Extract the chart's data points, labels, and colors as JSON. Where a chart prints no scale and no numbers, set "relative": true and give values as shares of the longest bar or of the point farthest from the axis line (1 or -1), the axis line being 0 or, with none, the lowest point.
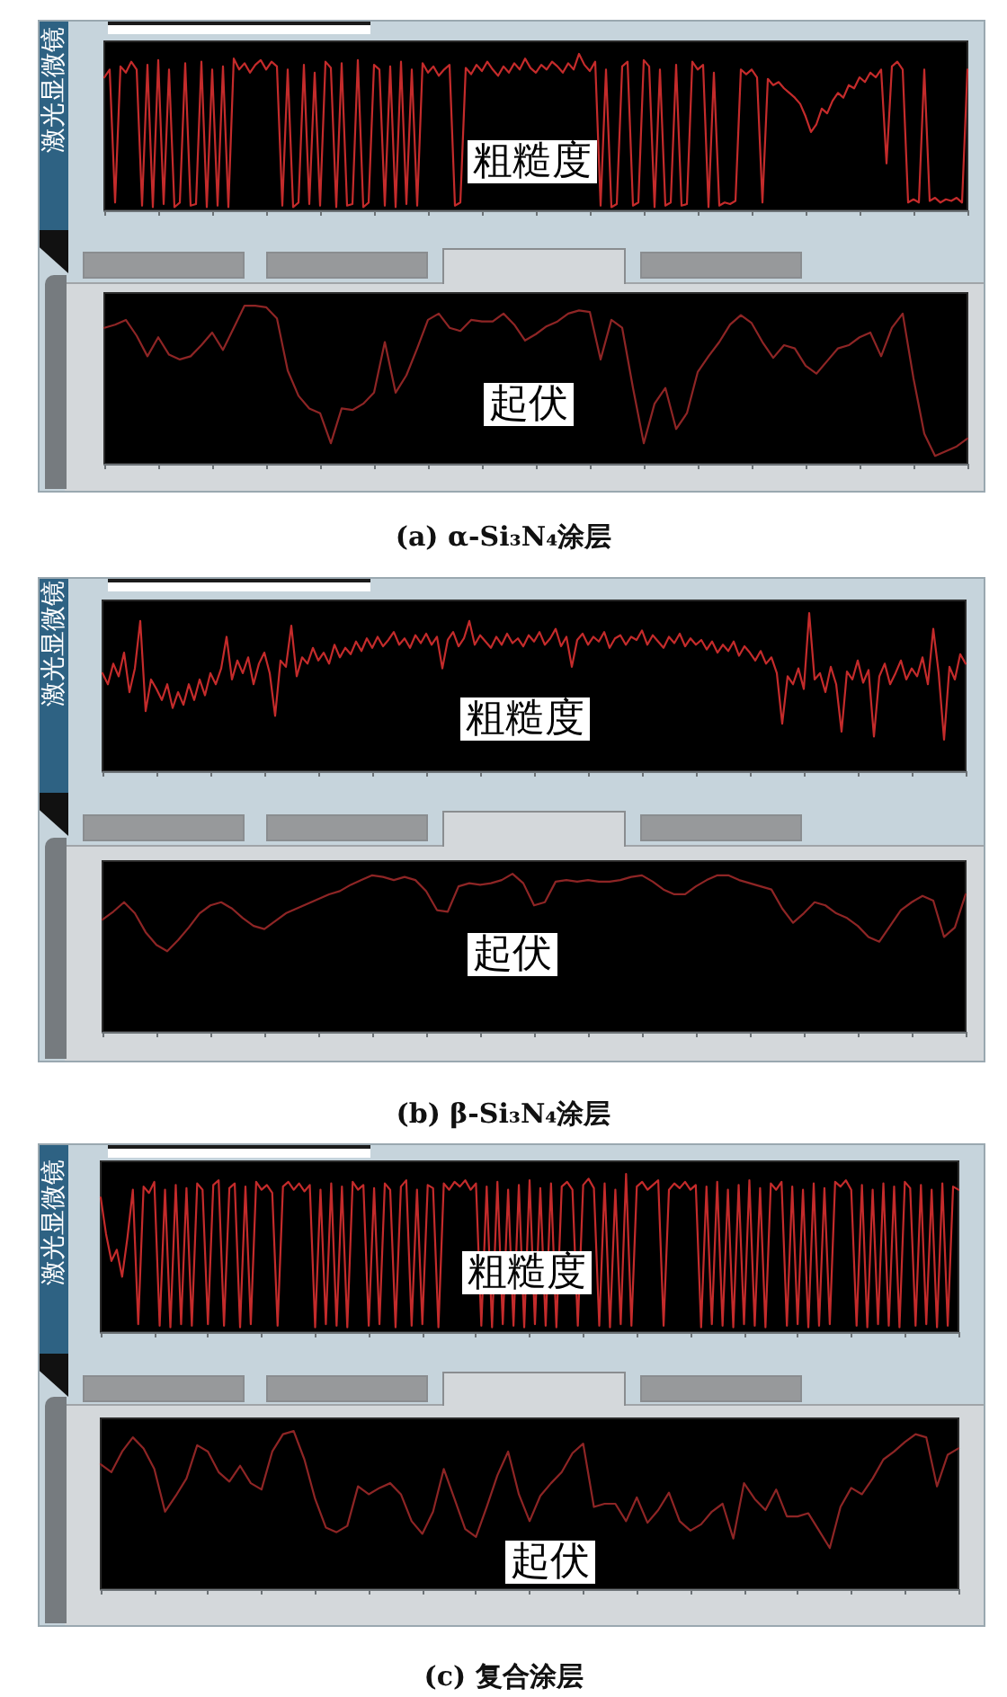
{
  "chart_data": [
    {
      "type": "line",
      "ylabel": "激光显微镜",
      "annotations": [
        "粗糙度"
      ],
      "relative": true,
      "categories": [
        null,
        null,
        null,
        null,
        null,
        null,
        null,
        null,
        null,
        null,
        null,
        null,
        null,
        null,
        null,
        null,
        null,
        null,
        null,
        null,
        null,
        null,
        null,
        null,
        null,
        null,
        null,
        null,
        null,
        null,
        null,
        null,
        null,
        null,
        null,
        null,
        null,
        null,
        null,
        null,
        null,
        null,
        null,
        null,
        null,
        null,
        null,
        null,
        null,
        null,
        null,
        null,
        null,
        null,
        null,
        null,
        null,
        null,
        null,
        null,
        null,
        null,
        null,
        null,
        null,
        null,
        null,
        null,
        null,
        null,
        null,
        null,
        null,
        null,
        null,
        null,
        null,
        null,
        null,
        null,
        null,
        null,
        null,
        null,
        null,
        null,
        null,
        null,
        null,
        null,
        null,
        null,
        null,
        null,
        null,
        null,
        null,
        null,
        null,
        null,
        null,
        null,
        null,
        null,
        null,
        null,
        null,
        null,
        null,
        null,
        null,
        null,
        null,
        null,
        null,
        null,
        null,
        null,
        null,
        null,
        null,
        null,
        null,
        null,
        null,
        null,
        null,
        null,
        null,
        null,
        null,
        null,
        null,
        null,
        null,
        null,
        null,
        null,
        null,
        null,
        null,
        null,
        null,
        null,
        null,
        null,
        null,
        null,
        null,
        null,
        null,
        null,
        null,
        null,
        null,
        null,
        null,
        null,
        null,
        null,
        null
      ],
      "series": [
        {
          "color": "#c42b2b",
          "values": [
            0.85,
            0.9,
            0.05,
            0.92,
            0.88,
            0.95,
            0.9,
            0.03,
            0.93,
            0.02,
            0.96,
            0.04,
            0.9,
            0.02,
            0.05,
            0.94,
            0.03,
            0.04,
            0.95,
            0.02,
            0.9,
            0.03,
            0.92,
            0.02,
            0.97,
            0.9,
            0.94,
            0.88,
            0.93,
            0.96,
            0.9,
            0.95,
            0.92,
            0.03,
            0.9,
            0.02,
            0.05,
            0.93,
            0.04,
            0.88,
            0.03,
            0.95,
            0.91,
            0.02,
            0.94,
            0.03,
            0.04,
            0.96,
            0.02,
            0.05,
            0.93,
            0.9,
            0.03,
            0.92,
            0.02,
            0.95,
            0.04,
            0.9,
            0.03,
            0.94,
            0.88,
            0.92,
            0.86,
            0.9,
            0.93,
            0.03,
            0.05,
            0.91,
            0.87,
            0.93,
            0.89,
            0.95,
            0.9,
            0.86,
            0.92,
            0.88,
            0.94,
            0.9,
            0.97,
            0.91,
            0.88,
            0.93,
            0.9,
            0.95,
            0.92,
            0.88,
            0.94,
            0.9,
            1,
            0.93,
            0.89,
            0.95,
            0.03,
            0.9,
            0.02,
            0.04,
            0.92,
            0.95,
            0.03,
            0.05,
            0.96,
            0.92,
            0.02,
            0.9,
            0.03,
            0.05,
            0.93,
            0.03,
            0.04,
            0.95,
            0.9,
            0.93,
            0.02,
            0.88,
            0.03,
            0.05,
            0.04,
            0.06,
            0.9,
            0.87,
            0.9,
            0.85,
            0.05,
            0.84,
            0.8,
            0.82,
            0.78,
            0.75,
            0.72,
            0.68,
            0.6,
            0.5,
            0.55,
            0.65,
            0.62,
            0.7,
            0.75,
            0.72,
            0.8,
            0.78,
            0.85,
            0.82,
            0.88,
            0.85,
            0.9,
            0.3,
            0.92,
            0.95,
            0.9,
            0.05,
            0.07,
            0.05,
            0.9,
            0.06,
            0.08,
            0.05,
            0.07,
            0.06,
            0.08,
            0.05,
            0.9
          ]
        }
      ]
    },
    {
      "type": "line",
      "title": "(a) α-Si₃N₄涂层",
      "annotations": [
        "起伏"
      ],
      "relative": true,
      "categories": [
        null,
        null,
        null,
        null,
        null,
        null,
        null,
        null,
        null,
        null,
        null,
        null,
        null,
        null,
        null,
        null,
        null,
        null,
        null,
        null,
        null,
        null,
        null,
        null,
        null,
        null,
        null,
        null,
        null,
        null,
        null,
        null,
        null,
        null,
        null,
        null,
        null,
        null,
        null,
        null,
        null,
        null,
        null,
        null,
        null,
        null,
        null,
        null,
        null,
        null,
        null,
        null,
        null,
        null,
        null,
        null,
        null,
        null,
        null,
        null,
        null,
        null,
        null,
        null,
        null,
        null,
        null,
        null,
        null,
        null,
        null,
        null,
        null,
        null,
        null,
        null,
        null,
        null,
        null,
        null,
        null
      ],
      "series": [
        {
          "color": "#8e2525",
          "values": [
            0.86,
            0.88,
            0.91,
            0.81,
            0.68,
            0.8,
            0.69,
            0.66,
            0.68,
            0.75,
            0.83,
            0.72,
            0.86,
            1,
            1,
            0.99,
            0.92,
            0.59,
            0.43,
            0.35,
            0.32,
            0.13,
            0.35,
            0.34,
            0.38,
            0.45,
            0.77,
            0.45,
            0.56,
            0.73,
            0.91,
            0.95,
            0.86,
            0.84,
            0.91,
            0.9,
            0.9,
            0.95,
            0.88,
            0.78,
            0.82,
            0.87,
            0.9,
            0.95,
            0.97,
            0.96,
            0.66,
            0.91,
            0.86,
            0.48,
            0.13,
            0.38,
            0.48,
            0.22,
            0.32,
            0.58,
            0.68,
            0.77,
            0.88,
            0.94,
            0.89,
            0.77,
            0.67,
            0.75,
            0.73,
            0.62,
            0.57,
            0.65,
            0.73,
            0.75,
            0.8,
            0.83,
            0.68,
            0.86,
            0.95,
            0.54,
            0.19,
            0.05,
            0.08,
            0.11,
            0.16
          ]
        }
      ]
    },
    {
      "type": "line",
      "ylabel": "激光显微镜",
      "annotations": [
        "粗糙度"
      ],
      "relative": true,
      "categories": [
        null,
        null,
        null,
        null,
        null,
        null,
        null,
        null,
        null,
        null,
        null,
        null,
        null,
        null,
        null,
        null,
        null,
        null,
        null,
        null,
        null,
        null,
        null,
        null,
        null,
        null,
        null,
        null,
        null,
        null,
        null,
        null,
        null,
        null,
        null,
        null,
        null,
        null,
        null,
        null,
        null,
        null,
        null,
        null,
        null,
        null,
        null,
        null,
        null,
        null,
        null,
        null,
        null,
        null,
        null,
        null,
        null,
        null,
        null,
        null,
        null,
        null,
        null,
        null,
        null,
        null,
        null,
        null,
        null,
        null,
        null,
        null,
        null,
        null,
        null,
        null,
        null,
        null,
        null,
        null,
        null,
        null,
        null,
        null,
        null,
        null,
        null,
        null,
        null,
        null,
        null,
        null,
        null,
        null,
        null,
        null,
        null,
        null,
        null,
        null,
        null,
        null,
        null,
        null,
        null,
        null,
        null,
        null,
        null,
        null,
        null,
        null,
        null,
        null,
        null,
        null,
        null,
        null,
        null,
        null,
        null,
        null,
        null,
        null,
        null,
        null,
        null,
        null,
        null,
        null,
        null,
        null,
        null,
        null,
        null,
        null,
        null,
        null,
        null,
        null,
        null,
        null,
        null,
        null,
        null,
        null,
        null,
        null,
        null,
        null,
        null,
        null,
        null,
        null,
        null,
        null,
        null,
        null,
        null,
        null,
        null
      ],
      "series": [
        {
          "color": "#c42b2b",
          "values": [
            0.62,
            0.55,
            0.68,
            0.6,
            0.75,
            0.5,
            0.65,
            0.95,
            0.38,
            0.58,
            0.52,
            0.45,
            0.55,
            0.4,
            0.5,
            0.42,
            0.55,
            0.45,
            0.58,
            0.48,
            0.62,
            0.55,
            0.65,
            0.85,
            0.58,
            0.7,
            0.62,
            0.72,
            0.55,
            0.68,
            0.75,
            0.62,
            0.35,
            0.7,
            0.66,
            0.92,
            0.6,
            0.72,
            0.68,
            0.78,
            0.7,
            0.75,
            0.68,
            0.8,
            0.72,
            0.78,
            0.74,
            0.82,
            0.76,
            0.84,
            0.78,
            0.85,
            0.79,
            0.83,
            0.88,
            0.8,
            0.84,
            0.78,
            0.86,
            0.81,
            0.87,
            0.8,
            0.85,
            0.65,
            0.83,
            0.88,
            0.79,
            0.84,
            0.95,
            0.8,
            0.86,
            0.82,
            0.78,
            0.85,
            0.8,
            0.87,
            0.81,
            0.84,
            0.79,
            0.86,
            0.82,
            0.88,
            0.8,
            0.84,
            0.9,
            0.79,
            0.85,
            0.66,
            0.83,
            0.87,
            0.8,
            0.85,
            0.82,
            0.88,
            0.78,
            0.84,
            0.86,
            0.8,
            0.85,
            0.83,
            0.89,
            0.8,
            0.86,
            0.82,
            0.78,
            0.85,
            0.81,
            0.87,
            0.79,
            0.84,
            0.8,
            0.83,
            0.77,
            0.82,
            0.75,
            0.8,
            0.76,
            0.82,
            0.73,
            0.79,
            0.75,
            0.7,
            0.76,
            0.68,
            0.72,
            0.62,
            0.3,
            0.6,
            0.55,
            0.65,
            0.52,
            1,
            0.58,
            0.62,
            0.5,
            0.66,
            0.55,
            0.25,
            0.63,
            0.58,
            0.7,
            0.56,
            0.64,
            0.22,
            0.6,
            0.68,
            0.55,
            0.62,
            0.7,
            0.58,
            0.65,
            0.6,
            0.72,
            0.55,
            0.9,
            0.62,
            0.2,
            0.66,
            0.58,
            0.74,
            0.68
          ]
        }
      ]
    },
    {
      "type": "line",
      "title": "(b) β-Si₃N₄涂层",
      "annotations": [
        "起伏"
      ],
      "relative": true,
      "categories": [
        null,
        null,
        null,
        null,
        null,
        null,
        null,
        null,
        null,
        null,
        null,
        null,
        null,
        null,
        null,
        null,
        null,
        null,
        null,
        null,
        null,
        null,
        null,
        null,
        null,
        null,
        null,
        null,
        null,
        null,
        null,
        null,
        null,
        null,
        null,
        null,
        null,
        null,
        null,
        null,
        null,
        null,
        null,
        null,
        null,
        null,
        null,
        null,
        null,
        null,
        null,
        null,
        null,
        null,
        null,
        null,
        null,
        null,
        null,
        null,
        null,
        null,
        null,
        null,
        null,
        null,
        null,
        null,
        null,
        null,
        null,
        null,
        null,
        null,
        null,
        null,
        null,
        null,
        null,
        null,
        null
      ],
      "series": [
        {
          "color": "#8e2525",
          "values": [
            0.71,
            0.76,
            0.82,
            0.75,
            0.63,
            0.55,
            0.51,
            0.58,
            0.66,
            0.75,
            0.8,
            0.82,
            0.78,
            0.72,
            0.67,
            0.65,
            0.7,
            0.75,
            0.78,
            0.81,
            0.84,
            0.87,
            0.89,
            0.93,
            0.96,
            0.99,
            0.98,
            0.96,
            0.98,
            0.96,
            0.89,
            0.77,
            0.76,
            0.92,
            0.94,
            0.93,
            0.94,
            0.96,
            1,
            0.94,
            0.8,
            0.82,
            0.95,
            0.96,
            0.95,
            0.96,
            0.95,
            0.95,
            0.96,
            0.98,
            0.99,
            0.95,
            0.9,
            0.87,
            0.87,
            0.92,
            0.96,
            0.99,
            0.99,
            0.96,
            0.94,
            0.92,
            0.9,
            0.78,
            0.69,
            0.75,
            0.82,
            0.8,
            0.75,
            0.72,
            0.67,
            0.6,
            0.57,
            0.67,
            0.77,
            0.82,
            0.86,
            0.83,
            0.6,
            0.66,
            0.87
          ]
        }
      ]
    },
    {
      "type": "line",
      "ylabel": "激光显微镜",
      "annotations": [
        "粗糙度"
      ],
      "relative": true,
      "categories": [
        null,
        null,
        null,
        null,
        null,
        null,
        null,
        null,
        null,
        null,
        null,
        null,
        null,
        null,
        null,
        null,
        null,
        null,
        null,
        null,
        null,
        null,
        null,
        null,
        null,
        null,
        null,
        null,
        null,
        null,
        null,
        null,
        null,
        null,
        null,
        null,
        null,
        null,
        null,
        null,
        null,
        null,
        null,
        null,
        null,
        null,
        null,
        null,
        null,
        null,
        null,
        null,
        null,
        null,
        null,
        null,
        null,
        null,
        null,
        null,
        null,
        null,
        null,
        null,
        null,
        null,
        null,
        null,
        null,
        null,
        null,
        null,
        null,
        null,
        null,
        null,
        null,
        null,
        null,
        null,
        null,
        null,
        null,
        null,
        null,
        null,
        null,
        null,
        null,
        null,
        null,
        null,
        null,
        null,
        null,
        null,
        null,
        null,
        null,
        null,
        null,
        null,
        null,
        null,
        null,
        null,
        null,
        null,
        null,
        null,
        null,
        null,
        null,
        null,
        null,
        null,
        null,
        null,
        null,
        null,
        null,
        null,
        null,
        null,
        null,
        null,
        null,
        null,
        null,
        null,
        null,
        null,
        null,
        null,
        null,
        null,
        null,
        null,
        null,
        null,
        null,
        null,
        null,
        null,
        null,
        null,
        null,
        null,
        null,
        null,
        null,
        null,
        null,
        null,
        null,
        null,
        null,
        null,
        null,
        null,
        null
      ],
      "series": [
        {
          "color": "#c42b2b",
          "values": [
            0.85,
            0.62,
            0.45,
            0.52,
            0.35,
            0.6,
            0.9,
            0.05,
            0.92,
            0.88,
            0.95,
            0.04,
            0.9,
            0.03,
            0.93,
            0.05,
            0.91,
            0.04,
            0.94,
            0.9,
            0.05,
            0.93,
            0.96,
            0.04,
            0.91,
            0.94,
            0.03,
            0.92,
            0.05,
            0.95,
            0.9,
            0.93,
            0.88,
            0.04,
            0.92,
            0.95,
            0.9,
            0.94,
            0.89,
            0.93,
            0.03,
            0.9,
            0.05,
            0.94,
            0.04,
            0.92,
            0.03,
            0.95,
            0.9,
            0.93,
            0.04,
            0.91,
            0.05,
            0.94,
            0.9,
            0.03,
            0.92,
            0.96,
            0.04,
            0.9,
            0.05,
            0.93,
            0.91,
            0.03,
            0.94,
            0.9,
            0.95,
            0.92,
            0.96,
            0.9,
            0.94,
            0.04,
            0.92,
            0.03,
            0.95,
            0.05,
            0.9,
            0.04,
            0.93,
            0.03,
            0.96,
            0.05,
            0.91,
            0.04,
            0.94,
            0.03,
            0.92,
            0.95,
            0.9,
            0.04,
            0.93,
            0.97,
            0.91,
            0.04,
            0.94,
            0.03,
            0.9,
            0.05,
            1,
            0.04,
            0.92,
            0.95,
            0.9,
            0.93,
            0.96,
            0.04,
            0.9,
            0.94,
            0.91,
            0.95,
            0.9,
            0.93,
            0.03,
            0.92,
            0.05,
            0.95,
            0.04,
            0.9,
            0.03,
            0.93,
            0.05,
            0.96,
            0.04,
            0.91,
            0.03,
            0.94,
            0.9,
            0.95,
            0.04,
            0.92,
            0.05,
            0.9,
            0.03,
            0.94,
            0.04,
            0.91,
            0.05,
            0.95,
            0.92,
            0.96,
            0.9,
            0.04,
            0.93,
            0.03,
            0.9,
            0.05,
            0.94,
            0.04,
            0.92,
            0.03,
            0.95,
            0.91,
            0.04,
            0.93,
            0.05,
            0.9,
            0.03,
            0.94,
            0.04,
            0.92,
            0.9
          ]
        }
      ]
    },
    {
      "type": "line",
      "title": "(c) 复合涂层",
      "annotations": [
        "起伏"
      ],
      "relative": true,
      "categories": [
        null,
        null,
        null,
        null,
        null,
        null,
        null,
        null,
        null,
        null,
        null,
        null,
        null,
        null,
        null,
        null,
        null,
        null,
        null,
        null,
        null,
        null,
        null,
        null,
        null,
        null,
        null,
        null,
        null,
        null,
        null,
        null,
        null,
        null,
        null,
        null,
        null,
        null,
        null,
        null,
        null,
        null,
        null,
        null,
        null,
        null,
        null,
        null,
        null,
        null,
        null,
        null,
        null,
        null,
        null,
        null,
        null,
        null,
        null,
        null,
        null,
        null,
        null,
        null,
        null,
        null,
        null,
        null,
        null,
        null,
        null,
        null,
        null,
        null,
        null,
        null,
        null,
        null,
        null,
        null,
        null
      ],
      "series": [
        {
          "color": "#8e2525",
          "values": [
            0.79,
            0.74,
            0.87,
            0.96,
            0.89,
            0.76,
            0.49,
            0.59,
            0.7,
            0.91,
            0.87,
            0.74,
            0.68,
            0.78,
            0.67,
            0.63,
            0.87,
            0.98,
            1,
            0.82,
            0.57,
            0.39,
            0.36,
            0.4,
            0.65,
            0.6,
            0.64,
            0.67,
            0.6,
            0.43,
            0.35,
            0.49,
            0.76,
            0.57,
            0.38,
            0.33,
            0.52,
            0.72,
            0.87,
            0.6,
            0.43,
            0.59,
            0.67,
            0.74,
            0.86,
            0.92,
            0.52,
            0.54,
            0.54,
            0.43,
            0.58,
            0.42,
            0.5,
            0.61,
            0.43,
            0.37,
            0.41,
            0.49,
            0.54,
            0.32,
            0.67,
            0.57,
            0.5,
            0.63,
            0.46,
            0.46,
            0.48,
            0.37,
            0.26,
            0.52,
            0.64,
            0.6,
            0.7,
            0.82,
            0.87,
            0.93,
            0.98,
            0.96,
            0.65,
            0.85,
            0.89
          ]
        }
      ]
    }
  ]
}
